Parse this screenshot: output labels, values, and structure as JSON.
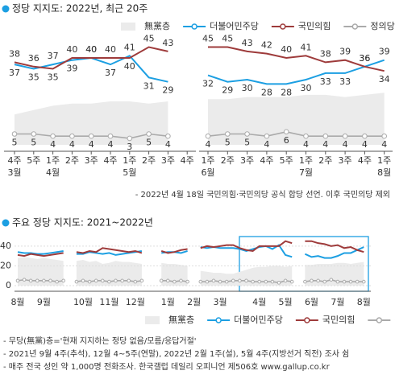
{
  "chart_data": [
    {
      "type": "line",
      "title": "정당 지지도: 2022년, 최근 20주",
      "categories": [
        "4주",
        "5주",
        "1주",
        "2주",
        "3주",
        "4주",
        "1주",
        "2주",
        "3주",
        "4주",
        "1주",
        "2주",
        "3주",
        "4주",
        "5주",
        "1주",
        "2주",
        "3주",
        "4주",
        "1주"
      ],
      "months": [
        "3월",
        null,
        "4월",
        null,
        null,
        null,
        "5월",
        null,
        null,
        null,
        "6월",
        null,
        null,
        null,
        null,
        "7월",
        null,
        null,
        null,
        "8월"
      ],
      "ylim": [
        0,
        50
      ],
      "data_labels": true,
      "note": "- 2022년 4월 18일 국민의힘·국민의당 공식 합당 선언. 이후 국민의당 제외",
      "series": [
        {
          "name": "無黨층",
          "kind": "area",
          "color": "#ebebeb",
          "values": [
            14,
            16,
            18,
            19,
            19,
            20,
            20,
            19,
            20,
            null,
            21,
            21,
            22,
            22,
            22,
            23,
            23,
            22,
            23,
            24
          ]
        },
        {
          "name": "더불어민주당",
          "kind": "line",
          "color": "#1c9fe2",
          "values": [
            37,
            35,
            37,
            39,
            40,
            37,
            41,
            31,
            29,
            null,
            32,
            29,
            30,
            28,
            28,
            30,
            33,
            33,
            36,
            39
          ]
        },
        {
          "name": "국민의힘",
          "kind": "line",
          "color": "#9e3b3b",
          "values": [
            38,
            36,
            35,
            40,
            40,
            40,
            40,
            45,
            43,
            null,
            45,
            45,
            43,
            42,
            40,
            41,
            38,
            39,
            36,
            34
          ]
        },
        {
          "name": "정의당 (%)",
          "kind": "dotline",
          "color": "#aaaaaa",
          "values": [
            5,
            5,
            4,
            4,
            4,
            4,
            3,
            5,
            4,
            null,
            4,
            5,
            5,
            4,
            6,
            4,
            4,
            4,
            4,
            4
          ]
        }
      ]
    },
    {
      "type": "line",
      "title": "주요 정당 지지도: 2021~2022년",
      "categories": [
        "8월",
        null,
        null,
        null,
        "9월",
        null,
        null,
        null,
        null,
        null,
        "10월",
        null,
        null,
        null,
        "11월",
        null,
        null,
        null,
        "12월",
        null,
        null,
        null,
        null,
        "1월",
        null,
        null,
        null,
        "2월",
        null,
        null,
        null,
        "3월",
        null,
        null,
        null,
        null,
        null,
        "4월",
        null,
        null,
        null,
        "5월",
        null,
        null,
        null,
        "6월",
        null,
        null,
        null,
        "7월",
        null,
        null,
        null,
        "8월"
      ],
      "ylim": [
        0,
        48
      ],
      "yticks": [
        0,
        20,
        40
      ],
      "grid": true,
      "series": [
        {
          "name": "無黨층",
          "kind": "area",
          "color": "#ebebeb",
          "values": [
            28,
            29,
            28,
            27,
            28,
            27,
            26,
            25,
            null,
            25,
            26,
            24,
            25,
            22,
            23,
            25,
            24,
            24,
            23,
            22,
            null,
            null,
            23,
            22,
            22,
            21,
            20,
            null,
            15,
            14,
            13,
            13,
            12,
            12,
            14,
            16,
            18,
            19,
            19,
            20,
            20,
            19,
            20,
            null,
            21,
            21,
            22,
            22,
            22,
            23,
            23,
            22,
            23,
            24
          ]
        },
        {
          "name": "더불어민주당",
          "kind": "line",
          "color": "#1c9fe2",
          "values": [
            34,
            33,
            33,
            32,
            32,
            33,
            34,
            35,
            null,
            32,
            32,
            34,
            33,
            32,
            33,
            31,
            32,
            33,
            34,
            35,
            null,
            null,
            33,
            34,
            34,
            33,
            35,
            null,
            39,
            38,
            39,
            38,
            38,
            38,
            37,
            35,
            37,
            39,
            40,
            37,
            41,
            31,
            29,
            null,
            32,
            29,
            30,
            28,
            28,
            30,
            33,
            33,
            36,
            39
          ]
        },
        {
          "name": "국민의힘",
          "kind": "line",
          "color": "#9e3b3b",
          "values": [
            31,
            30,
            32,
            31,
            30,
            31,
            32,
            33,
            null,
            34,
            33,
            35,
            34,
            38,
            37,
            36,
            35,
            34,
            35,
            33,
            null,
            null,
            35,
            33,
            34,
            36,
            37,
            null,
            38,
            40,
            39,
            40,
            41,
            41,
            38,
            36,
            35,
            40,
            40,
            40,
            40,
            45,
            43,
            null,
            45,
            45,
            43,
            42,
            40,
            41,
            38,
            39,
            36,
            34
          ]
        },
        {
          "name": "정의당 (%)",
          "kind": "dotline",
          "color": "#aaaaaa",
          "values": [
            5,
            6,
            5,
            5,
            5,
            5,
            4,
            5,
            null,
            4,
            5,
            4,
            5,
            5,
            4,
            5,
            5,
            5,
            4,
            5,
            null,
            null,
            5,
            5,
            4,
            5,
            4,
            null,
            4,
            4,
            5,
            4,
            4,
            5,
            5,
            5,
            4,
            4,
            4,
            4,
            3,
            5,
            4,
            null,
            4,
            5,
            5,
            4,
            6,
            4,
            4,
            4,
            4,
            4
          ]
        }
      ]
    }
  ],
  "notes": [
    "- 무당(無黨)층='현재 지지하는 정당 없음/모름/응답거절'",
    "- 2021년 9월 4주(추석), 12월 4~5주(연말), 2022년 2월 1주(설), 5월 4주(지방선거 직전) 조사 쉼",
    "- 매주 전국 성인 약 1,000명 전화조사. 한국갤럽 데일리 오피니언 제506호 www.gallup.co.kr"
  ]
}
